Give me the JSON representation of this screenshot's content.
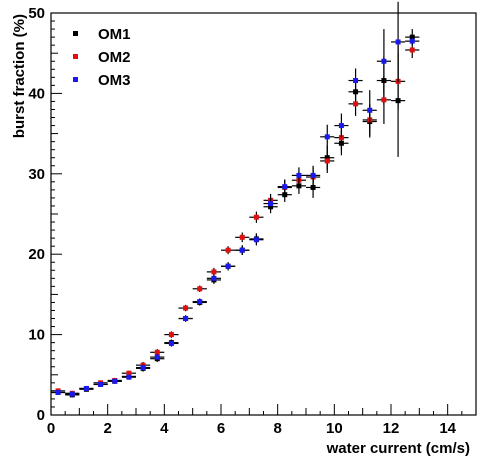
{
  "chart_data": {
    "type": "scatter",
    "title": "",
    "xlabel": "water current (cm/s)",
    "ylabel": "burst fraction (%)",
    "xlim": [
      0,
      15
    ],
    "ylim": [
      0,
      50
    ],
    "x_ticks": [
      0,
      2,
      4,
      6,
      8,
      10,
      12,
      14
    ],
    "y_ticks": [
      0,
      10,
      20,
      30,
      40,
      50
    ],
    "grid": false,
    "legend_position": "top-left",
    "x_error": 0.25,
    "series": [
      {
        "name": "OM1",
        "color": "#000000",
        "x": [
          0.25,
          0.75,
          1.25,
          1.75,
          2.25,
          2.75,
          3.25,
          3.75,
          4.25,
          4.75,
          5.25,
          5.75,
          6.25,
          6.75,
          7.25,
          7.75,
          8.25,
          8.75,
          9.25,
          9.75,
          10.25,
          10.75,
          11.25,
          11.75,
          12.25,
          12.75
        ],
        "y": [
          2.8,
          2.5,
          3.2,
          3.8,
          4.2,
          4.8,
          5.8,
          7.0,
          9.0,
          12.0,
          14.0,
          16.8,
          18.5,
          20.5,
          21.9,
          25.9,
          27.4,
          28.5,
          28.3,
          32.0,
          33.8,
          40.2,
          36.5,
          41.6,
          39.1,
          47.0
        ],
        "y_err": [
          0.3,
          0.3,
          0.3,
          0.3,
          0.3,
          0.3,
          0.4,
          0.4,
          0.4,
          0.4,
          0.4,
          0.5,
          0.5,
          0.6,
          0.7,
          0.8,
          0.9,
          1.0,
          1.3,
          1.5,
          1.5,
          1.5,
          2.0,
          3.0,
          7.0,
          1.0
        ]
      },
      {
        "name": "OM2",
        "color": "#e01010",
        "x": [
          0.25,
          0.75,
          1.25,
          1.75,
          2.25,
          2.75,
          3.25,
          3.75,
          4.25,
          4.75,
          5.25,
          5.75,
          6.25,
          6.75,
          7.25,
          7.75,
          8.25,
          8.75,
          9.25,
          9.75,
          10.25,
          10.75,
          11.25,
          11.75,
          12.25,
          12.75
        ],
        "y": [
          3.0,
          2.7,
          3.3,
          4.0,
          4.3,
          5.2,
          6.2,
          7.8,
          10.0,
          13.3,
          15.7,
          17.8,
          20.5,
          22.1,
          24.6,
          26.7,
          28.3,
          29.2,
          29.6,
          31.6,
          34.5,
          38.7,
          36.7,
          39.2,
          41.5,
          45.4
        ],
        "y_err": [
          0.3,
          0.3,
          0.3,
          0.3,
          0.3,
          0.3,
          0.4,
          0.4,
          0.4,
          0.4,
          0.4,
          0.5,
          0.5,
          0.6,
          0.7,
          0.8,
          0.9,
          1.0,
          1.2,
          1.5,
          1.5,
          1.5,
          2.0,
          3.0,
          3.5,
          1.0
        ]
      },
      {
        "name": "OM3",
        "color": "#1a1aee",
        "x": [
          0.25,
          0.75,
          1.25,
          1.75,
          2.25,
          2.75,
          3.25,
          3.75,
          4.25,
          4.75,
          5.25,
          5.75,
          6.25,
          6.75,
          7.25,
          7.75,
          8.25,
          8.75,
          9.25,
          9.75,
          10.25,
          10.75,
          11.25,
          11.75,
          12.25,
          12.75
        ],
        "y": [
          2.8,
          2.6,
          3.3,
          3.8,
          4.2,
          4.7,
          5.9,
          7.2,
          8.9,
          12.0,
          14.1,
          17.0,
          18.5,
          20.5,
          21.8,
          26.3,
          28.4,
          29.8,
          29.8,
          34.6,
          36.0,
          41.6,
          37.9,
          44.0,
          46.4,
          46.5
        ],
        "y_err": [
          0.3,
          0.3,
          0.3,
          0.3,
          0.3,
          0.3,
          0.4,
          0.4,
          0.4,
          0.4,
          0.4,
          0.5,
          0.5,
          0.6,
          0.7,
          0.8,
          0.9,
          1.0,
          1.2,
          1.5,
          1.5,
          1.5,
          2.5,
          4.0,
          5.0,
          0.0
        ]
      }
    ]
  }
}
